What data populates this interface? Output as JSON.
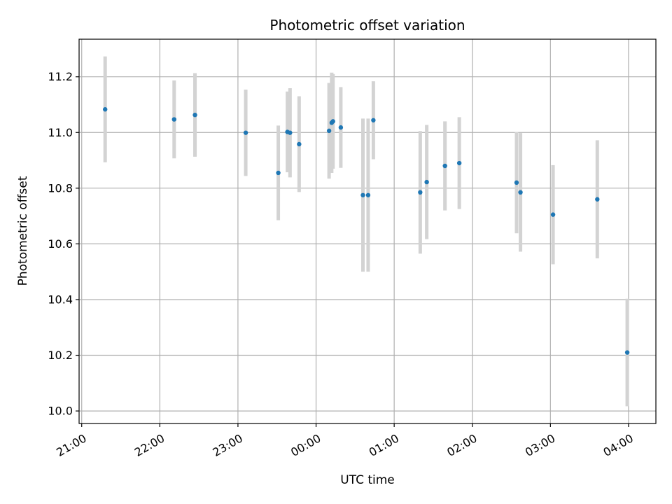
{
  "chart_data": {
    "type": "scatter",
    "title": "Photometric offset variation",
    "xlabel": "UTC time",
    "ylabel": "Photometric offset",
    "grid": true,
    "x_tick_labels": [
      "21:00",
      "22:00",
      "23:00",
      "00:00",
      "01:00",
      "02:00",
      "03:00",
      "04:00"
    ],
    "y_tick_values": [
      10.0,
      10.2,
      10.4,
      10.6,
      10.8,
      11.0,
      11.2
    ],
    "y_tick_labels": [
      "10.0",
      "10.2",
      "10.4",
      "10.6",
      "10.8",
      "11.0",
      "11.2"
    ],
    "xlim": [
      "20:58",
      "04:21"
    ],
    "ylim": [
      9.955,
      11.335
    ],
    "colors": {
      "point": "#1f77b4",
      "errorbar": "#d3d3d3",
      "grid": "#b0b0b0"
    },
    "series": [
      {
        "points": [
          {
            "x": "21:18",
            "y": 11.083,
            "err": 0.19
          },
          {
            "x": "22:11",
            "y": 11.047,
            "err": 0.14
          },
          {
            "x": "22:27",
            "y": 11.063,
            "err": 0.15
          },
          {
            "x": "23:06",
            "y": 10.999,
            "err": 0.155
          },
          {
            "x": "23:31",
            "y": 10.855,
            "err": 0.17
          },
          {
            "x": "23:38",
            "y": 11.002,
            "err": 0.145
          },
          {
            "x": "23:40",
            "y": 10.999,
            "err": 0.16
          },
          {
            "x": "23:47",
            "y": 10.958,
            "err": 0.172
          },
          {
            "x": "00:10",
            "y": 11.006,
            "err": 0.172
          },
          {
            "x": "00:12",
            "y": 11.035,
            "err": 0.18
          },
          {
            "x": "00:13",
            "y": 11.04,
            "err": 0.17
          },
          {
            "x": "00:19",
            "y": 11.018,
            "err": 0.145
          },
          {
            "x": "00:36",
            "y": 10.775,
            "err": 0.275
          },
          {
            "x": "00:40",
            "y": 10.775,
            "err": 0.275
          },
          {
            "x": "00:44",
            "y": 11.044,
            "err": 0.14
          },
          {
            "x": "01:20",
            "y": 10.785,
            "err": 0.22
          },
          {
            "x": "01:25",
            "y": 10.822,
            "err": 0.205
          },
          {
            "x": "01:39",
            "y": 10.88,
            "err": 0.16
          },
          {
            "x": "01:50",
            "y": 10.89,
            "err": 0.165
          },
          {
            "x": "02:34",
            "y": 10.82,
            "err": 0.182
          },
          {
            "x": "02:37",
            "y": 10.785,
            "err": 0.213
          },
          {
            "x": "03:02",
            "y": 10.705,
            "err": 0.178
          },
          {
            "x": "03:36",
            "y": 10.76,
            "err": 0.212
          },
          {
            "x": "03:59",
            "y": 10.21,
            "err": 0.193
          }
        ]
      }
    ]
  }
}
